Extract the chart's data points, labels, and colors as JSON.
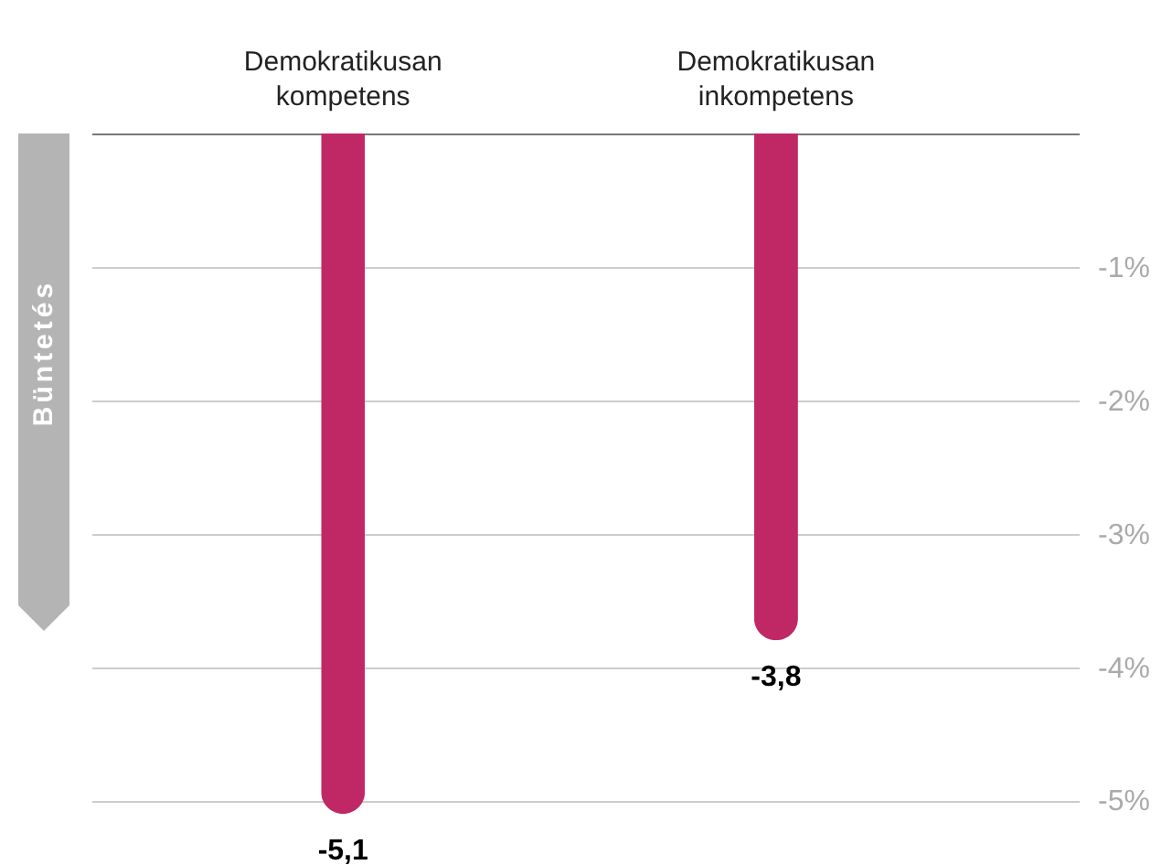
{
  "chart_data": {
    "type": "bar",
    "ylabel": "Büntetés",
    "categories": [
      "Demokratikusan kompetens",
      "Demokratikusan inkompetens"
    ],
    "values": [
      -5.1,
      -3.8
    ],
    "value_labels": [
      "-5,1",
      "-3,8"
    ],
    "color": "#c02865",
    "ylim": [
      -5.1,
      0
    ],
    "yticks": [
      {
        "value": -1,
        "label": "-1%"
      },
      {
        "value": -2,
        "label": "-2%"
      },
      {
        "value": -3,
        "label": "-3%"
      },
      {
        "value": -4,
        "label": "-4%"
      },
      {
        "value": -5,
        "label": "-5%"
      }
    ],
    "grid": "y"
  }
}
